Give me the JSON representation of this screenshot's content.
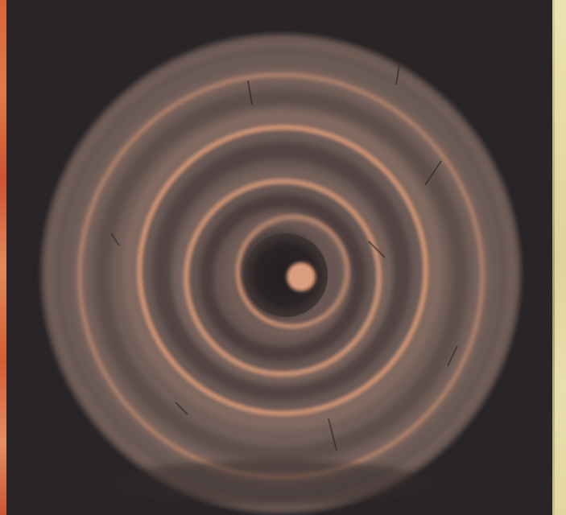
{
  "image": {
    "subject": "",
    "colors": {
      "background": "#1f1b1e",
      "ring_bright": "#f0a67c",
      "ring_mid": "#a8826f",
      "ring_dim": "#5b4a47",
      "left_edge": "#d9643b",
      "right_edge": "#e6dba3"
    }
  }
}
